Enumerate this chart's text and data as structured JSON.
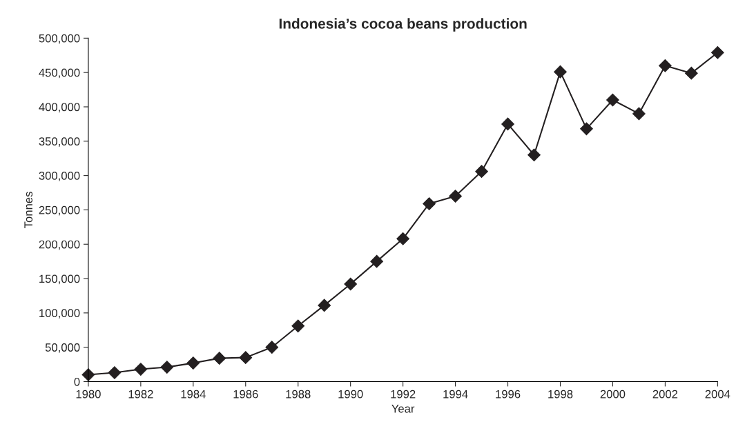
{
  "chart_data": {
    "type": "line",
    "title": "Indonesia’s cocoa beans production",
    "xlabel": "Year",
    "ylabel": "Tonnes",
    "x": [
      1980,
      1981,
      1982,
      1983,
      1984,
      1985,
      1986,
      1987,
      1988,
      1989,
      1990,
      1991,
      1992,
      1993,
      1994,
      1995,
      1996,
      1997,
      1998,
      1999,
      2000,
      2001,
      2002,
      2003,
      2004
    ],
    "series": [
      {
        "color": "#231f20",
        "values": [
          10000,
          13000,
          18000,
          21000,
          27000,
          34000,
          35000,
          50000,
          81000,
          111000,
          142000,
          175000,
          208000,
          259000,
          270000,
          306000,
          375000,
          330000,
          451000,
          368000,
          410000,
          390000,
          460000,
          449000,
          479000
        ]
      }
    ],
    "xlim": [
      1980,
      2004
    ],
    "xticks": [
      1980,
      1982,
      1984,
      1986,
      1988,
      1990,
      1992,
      1994,
      1996,
      1998,
      2000,
      2002,
      2004
    ],
    "ylim": [
      0,
      500000
    ],
    "yticks": [
      {
        "value": 0,
        "label": "0"
      },
      {
        "value": 50000,
        "label": "50,000"
      },
      {
        "value": 100000,
        "label": "100,000"
      },
      {
        "value": 150000,
        "label": "150,000"
      },
      {
        "value": 200000,
        "label": "200,000"
      },
      {
        "value": 250000,
        "label": "250,000"
      },
      {
        "value": 300000,
        "label": "300,000"
      },
      {
        "value": 350000,
        "label": "350,000"
      },
      {
        "value": 400000,
        "label": "400,000"
      },
      {
        "value": 450000,
        "label": "450,000"
      },
      {
        "value": 500000,
        "label": "500,000"
      }
    ],
    "marker": "diamond",
    "line_style": "solid",
    "grid": false
  }
}
